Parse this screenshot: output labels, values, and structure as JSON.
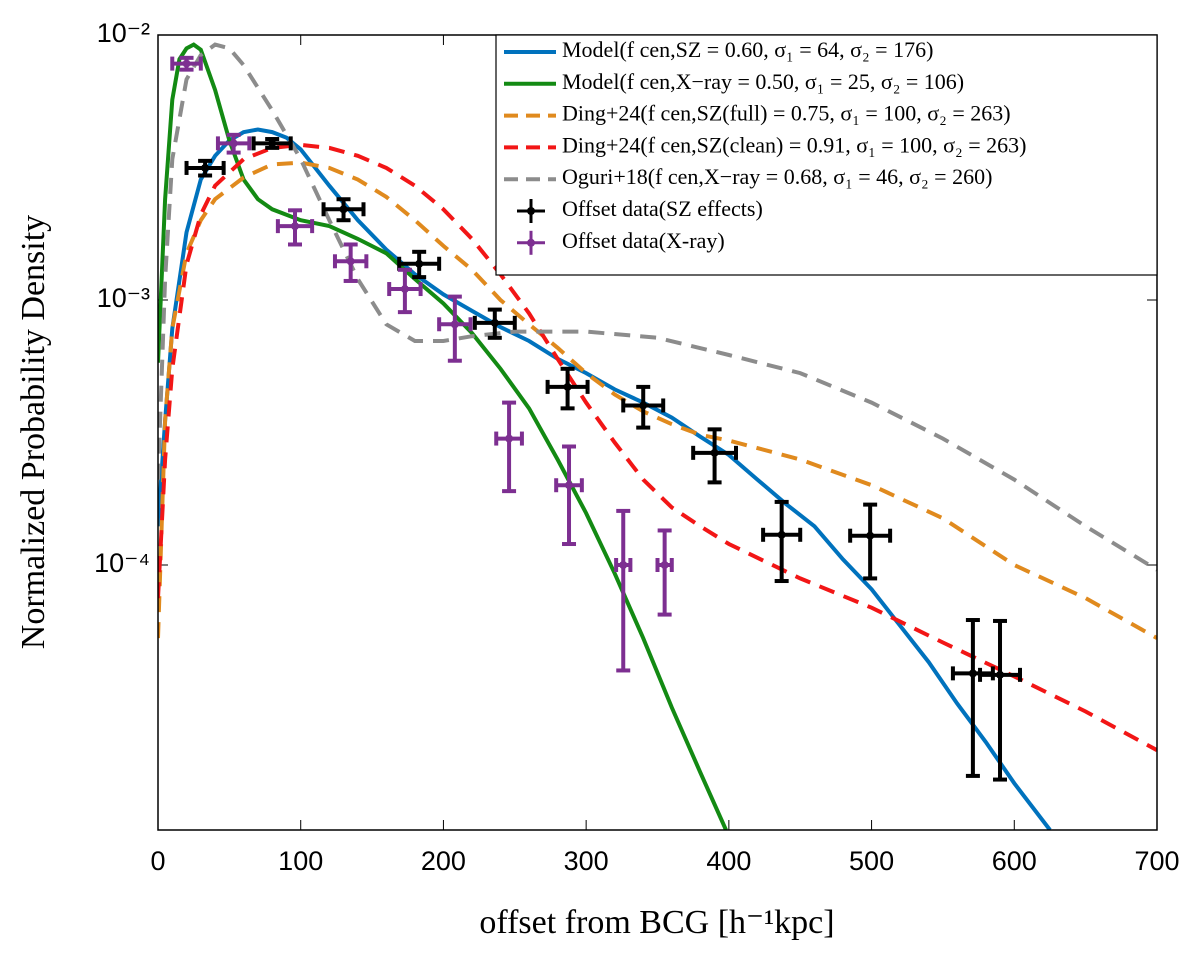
{
  "chart_data": {
    "type": "line",
    "x_label": "offset from BCG [h⁻¹kpc]",
    "y_label": "Normalized Probability Density",
    "xlim": [
      0,
      700
    ],
    "xticks": [
      0,
      100,
      200,
      300,
      400,
      500,
      600,
      700
    ],
    "ylim": [
      1e-05,
      0.01
    ],
    "yticks": [
      {
        "value": 0.01,
        "label": "10⁻²"
      },
      {
        "value": 0.001,
        "label": "10⁻³"
      },
      {
        "value": 0.0001,
        "label": "10⁻⁴"
      }
    ],
    "y_log": true,
    "legend": "upper right",
    "series": [
      {
        "name": "Model(f cen,SZ = 0.60, σ₁ = 64, σ₂ = 176)",
        "color": "#0072bd",
        "style": "solid",
        "x": [
          0,
          5,
          10,
          20,
          30,
          40,
          50,
          60,
          70,
          80,
          90,
          100,
          120,
          140,
          160,
          180,
          200,
          220,
          240,
          260,
          280,
          300,
          320,
          340,
          360,
          380,
          400,
          420,
          440,
          460,
          480,
          500,
          520,
          540,
          560,
          580,
          600,
          625
        ],
        "values": [
          0.00014,
          0.00035,
          0.00078,
          0.0018,
          0.00285,
          0.0035,
          0.004,
          0.0043,
          0.0044,
          0.0043,
          0.0041,
          0.0037,
          0.0027,
          0.002,
          0.00155,
          0.00125,
          0.00105,
          0.00091,
          0.00079,
          0.0007,
          0.0006,
          0.00053,
          0.00046,
          0.00041,
          0.00036,
          0.000305,
          0.00026,
          0.00021,
          0.00017,
          0.00014,
          0.000105,
          8.1e-05,
          5.9e-05,
          4.3e-05,
          3e-05,
          2.15e-05,
          1.5e-05,
          1e-05
        ]
      },
      {
        "name": "Model(f cen,X−ray = 0.50, σ₁ = 25, σ₂ = 106)",
        "color": "#138a13",
        "style": "solid",
        "x": [
          0,
          5,
          10,
          15,
          20,
          25,
          30,
          40,
          50,
          60,
          70,
          80,
          100,
          120,
          140,
          160,
          180,
          200,
          220,
          240,
          260,
          280,
          300,
          320,
          340,
          360,
          380,
          398
        ],
        "values": [
          0.00058,
          0.0024,
          0.0057,
          0.0081,
          0.0089,
          0.0092,
          0.0088,
          0.0062,
          0.004,
          0.00285,
          0.0024,
          0.0022,
          0.002,
          0.0019,
          0.0017,
          0.0015,
          0.0012,
          0.00097,
          0.00075,
          0.00055,
          0.00039,
          0.00025,
          0.000157,
          9.3e-05,
          5.3e-05,
          2.9e-05,
          1.65e-05,
          1e-05
        ]
      },
      {
        "name": "Ding+24(f cen,SZ(full) = 0.75, σ₁ = 100, σ₂ = 263)",
        "color": "#e08a1e",
        "style": "dashed",
        "x": [
          0,
          5,
          10,
          20,
          30,
          40,
          60,
          80,
          100,
          120,
          140,
          160,
          180,
          200,
          220,
          240,
          260,
          280,
          300,
          320,
          340,
          360,
          380,
          400,
          450,
          500,
          550,
          600,
          650,
          700
        ],
        "values": [
          5.3e-05,
          0.00035,
          0.00078,
          0.0015,
          0.002,
          0.0024,
          0.0029,
          0.00325,
          0.0033,
          0.00315,
          0.00285,
          0.00245,
          0.002,
          0.0016,
          0.0013,
          0.001,
          0.00081,
          0.00066,
          0.00053,
          0.00044,
          0.00038,
          0.00034,
          0.00031,
          0.000295,
          0.00025,
          0.0002,
          0.00015,
          0.0001,
          7.5e-05,
          5.3e-05
        ]
      },
      {
        "name": "Ding+24(f cen,SZ(clean) = 0.91, σ₁ = 100, σ₂ = 263)",
        "color": "#f21616",
        "style": "dashed",
        "x": [
          0,
          5,
          10,
          20,
          30,
          40,
          60,
          80,
          100,
          120,
          140,
          160,
          180,
          200,
          220,
          240,
          260,
          280,
          300,
          320,
          340,
          360,
          380,
          400,
          450,
          500,
          550,
          600,
          650,
          700
        ],
        "values": [
          7.5e-05,
          0.00025,
          0.00055,
          0.00136,
          0.0021,
          0.0027,
          0.0034,
          0.00375,
          0.00385,
          0.00375,
          0.0035,
          0.00315,
          0.0027,
          0.0022,
          0.0017,
          0.00125,
          0.00089,
          0.0006,
          0.00041,
          0.00029,
          0.00021,
          0.000165,
          0.00014,
          0.00012,
          8.9e-05,
          6.9e-05,
          5.1e-05,
          3.8e-05,
          2.8e-05,
          2e-05
        ]
      },
      {
        "name": "Oguri+18(f cen,X−ray = 0.68, σ₁ = 46, σ₂ = 260)",
        "color": "#8c8c8c",
        "style": "dashed",
        "x": [
          0,
          5,
          10,
          20,
          30,
          40,
          50,
          60,
          80,
          100,
          120,
          140,
          160,
          180,
          200,
          220,
          250,
          300,
          350,
          400,
          450,
          500,
          550,
          600,
          650,
          700
        ],
        "values": [
          0.00021,
          0.0012,
          0.0034,
          0.0068,
          0.0084,
          0.0092,
          0.0089,
          0.0077,
          0.0052,
          0.0034,
          0.002,
          0.0012,
          0.00081,
          0.0007,
          0.0007,
          0.00073,
          0.00076,
          0.00076,
          0.00072,
          0.00062,
          0.00053,
          0.00041,
          0.0003,
          0.00021,
          0.00014,
          9.6e-05
        ]
      },
      {
        "name": "Offset data(SZ effects)",
        "color": "#000000",
        "style": "errorbar",
        "x": [
          33,
          80,
          130,
          183,
          236,
          287,
          340,
          390,
          437,
          499,
          571,
          590
        ],
        "values": [
          0.00315,
          0.0039,
          0.0022,
          0.00137,
          0.00082,
          0.00047,
          0.0004,
          0.000265,
          0.00013,
          0.000129,
          3.9e-05,
          3.85e-05
        ],
        "xerr": [
          13,
          13,
          14,
          14,
          14,
          14,
          14,
          15,
          13,
          14,
          14,
          14
        ],
        "yerr": [
          0.0002,
          0.00015,
          0.0002,
          0.00015,
          0.0001,
          8e-05,
          7e-05,
          6e-05,
          4.3e-05,
          4e-05,
          2.3e-05,
          2.3e-05
        ]
      },
      {
        "name": "Offset data(X-ray)",
        "color": "#7d2f91",
        "style": "errorbar",
        "x": [
          20,
          53,
          96,
          135,
          173,
          208,
          246,
          288,
          326,
          355
        ],
        "values": [
          0.0078,
          0.0039,
          0.0019,
          0.0014,
          0.0011,
          0.00081,
          0.0003,
          0.0002,
          0.0001,
          0.0001
        ],
        "xerr": [
          10,
          11,
          12,
          11,
          11,
          11,
          9,
          9,
          5,
          5
        ],
        "yerr": [
          0.0004,
          0.0003,
          0.00028,
          0.00022,
          0.0002,
          0.00022,
          0.00011,
          8e-05,
          6e-05,
          3.5e-05
        ]
      }
    ]
  }
}
